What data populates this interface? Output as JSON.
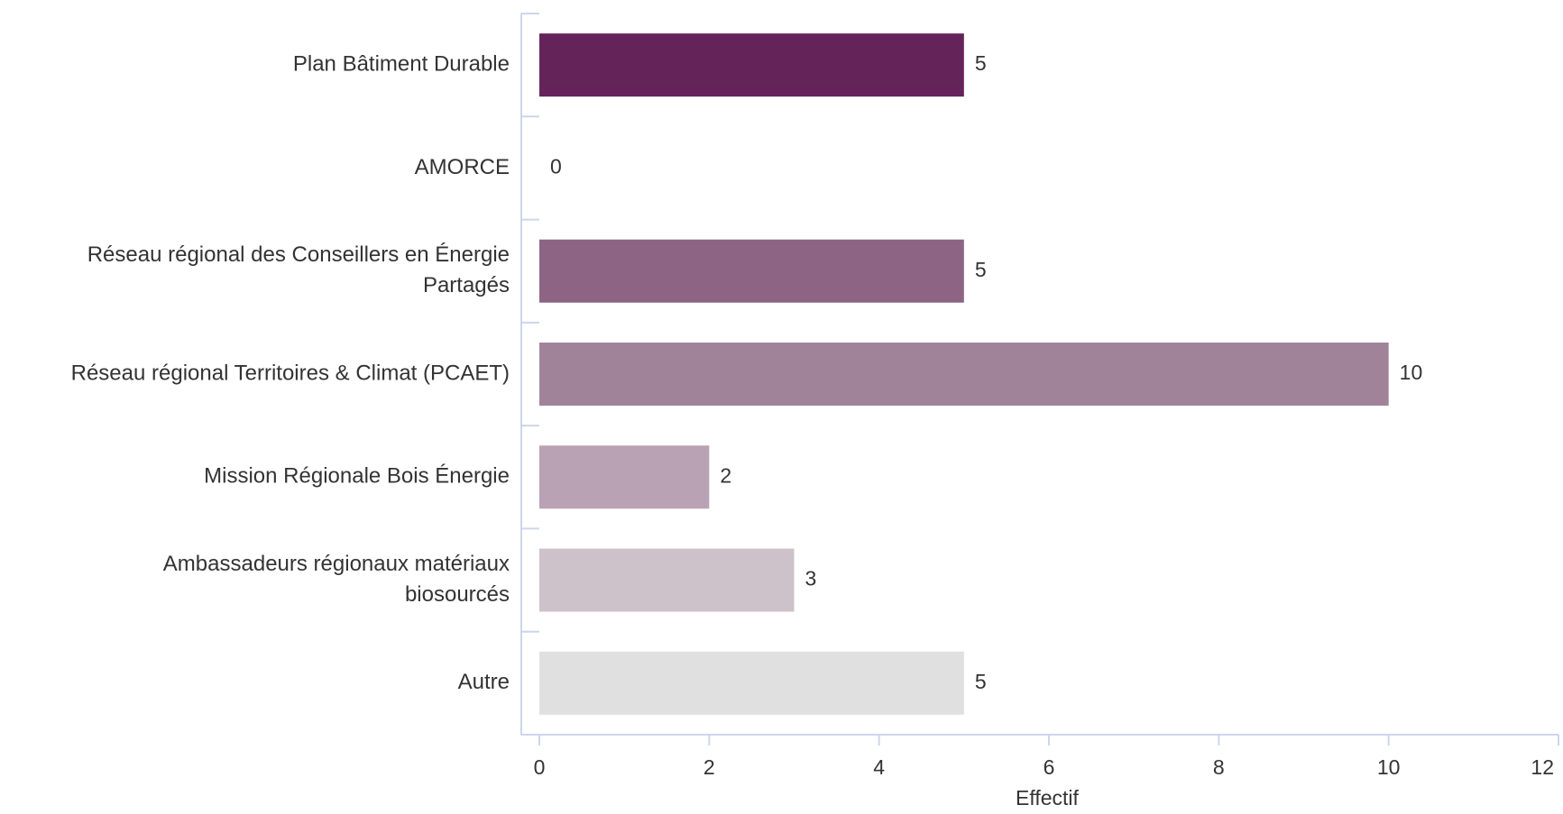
{
  "chart_data": {
    "type": "bar",
    "orientation": "horizontal",
    "categories": [
      [
        "Plan Bâtiment Durable"
      ],
      [
        "AMORCE"
      ],
      [
        "Réseau régional des Conseillers en Énergie",
        "Partagés"
      ],
      [
        "Réseau régional Territoires & Climat (PCAET)"
      ],
      [
        "Mission Régionale Bois Énergie"
      ],
      [
        "Ambassadeurs régionaux matériaux",
        "biosourcés"
      ],
      [
        "Autre"
      ]
    ],
    "values": [
      5,
      0,
      5,
      10,
      2,
      3,
      5
    ],
    "colors": [
      "#652459",
      "#8a5480",
      "#8e6484",
      "#a18399",
      "#b8a2b3",
      "#cdc1ca",
      "#e0e0e0"
    ],
    "xlabel": "Effectif",
    "ylabel": "",
    "xlim": [
      0,
      12
    ],
    "xticks": [
      0,
      2,
      4,
      6,
      8,
      10,
      12
    ],
    "axis_color": "#ccd6eb",
    "grid": false,
    "show_data_labels": true
  }
}
